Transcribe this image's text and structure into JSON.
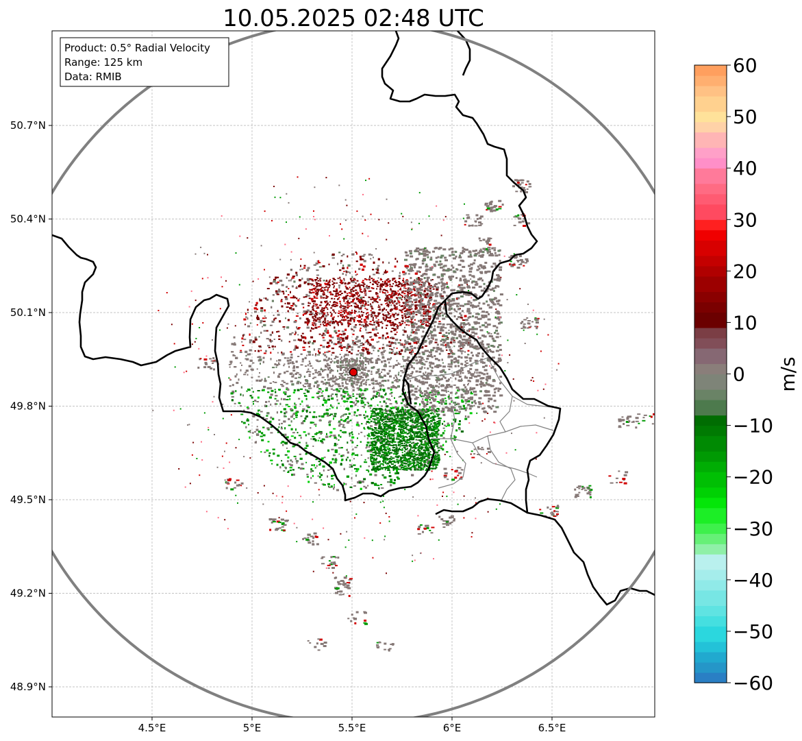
{
  "title": "10.05.2025 02:48 UTC",
  "info_box": {
    "product": "Product: 0.5° Radial Velocity",
    "range": "Range: 125 km",
    "data": "Data: RMIB"
  },
  "map": {
    "x_ticks": [
      {
        "value": 4.5,
        "label": "4.5°E"
      },
      {
        "value": 5.0,
        "label": "5°E"
      },
      {
        "value": 5.5,
        "label": "5.5°E"
      },
      {
        "value": 6.0,
        "label": "6°E"
      },
      {
        "value": 6.5,
        "label": "6.5°E"
      }
    ],
    "y_ticks": [
      {
        "value": 50.7,
        "label": "50.7°N"
      },
      {
        "value": 50.4,
        "label": "50.4°N"
      },
      {
        "value": 50.1,
        "label": "50.1°N"
      },
      {
        "value": 49.8,
        "label": "49.8°N"
      },
      {
        "value": 49.5,
        "label": "49.5°N"
      },
      {
        "value": 49.2,
        "label": "49.2°N"
      },
      {
        "value": 48.9,
        "label": "48.9°N"
      }
    ],
    "radar_site": {
      "lon": 5.505,
      "lat": 49.914
    },
    "range_ring_color": "#808080",
    "border_color": "#000000",
    "admin_border_color": "#808080",
    "gridlines": true
  },
  "colorbar": {
    "label": "m/s",
    "min": -60,
    "max": 60,
    "ticks": [
      {
        "value": 60,
        "label": "60"
      },
      {
        "value": 50,
        "label": "50"
      },
      {
        "value": 40,
        "label": "40"
      },
      {
        "value": 30,
        "label": "30"
      },
      {
        "value": 20,
        "label": "20"
      },
      {
        "value": 10,
        "label": "10"
      },
      {
        "value": 0,
        "label": "0"
      },
      {
        "value": -10,
        "label": "−10"
      },
      {
        "value": -20,
        "label": "−20"
      },
      {
        "value": -30,
        "label": "−30"
      },
      {
        "value": -40,
        "label": "−40"
      },
      {
        "value": -50,
        "label": "−50"
      },
      {
        "value": -60,
        "label": "−60"
      }
    ],
    "stops": [
      {
        "from": -60,
        "color": "#2a7fc4"
      },
      {
        "from": -58,
        "color": "#2596c8"
      },
      {
        "from": -56,
        "color": "#21a9cf"
      },
      {
        "from": -54,
        "color": "#23c2d8"
      },
      {
        "from": -52,
        "color": "#2bd7de"
      },
      {
        "from": -49,
        "color": "#45dfe0"
      },
      {
        "from": -47,
        "color": "#5fe3e2"
      },
      {
        "from": -45,
        "color": "#77e6e4"
      },
      {
        "from": -42,
        "color": "#90eae8"
      },
      {
        "from": -40,
        "color": "#a5edeb"
      },
      {
        "from": -38,
        "color": "#b9f0ee"
      },
      {
        "from": -35,
        "color": "#8ff0a8"
      },
      {
        "from": -33,
        "color": "#66f077"
      },
      {
        "from": -31,
        "color": "#3ef04c"
      },
      {
        "from": -29,
        "color": "#1cee26"
      },
      {
        "from": -26,
        "color": "#04e609"
      },
      {
        "from": -24,
        "color": "#00d104"
      },
      {
        "from": -22,
        "color": "#00bf04"
      },
      {
        "from": -19,
        "color": "#00ad04"
      },
      {
        "from": -17,
        "color": "#009a03"
      },
      {
        "from": -15,
        "color": "#008a03"
      },
      {
        "from": -12,
        "color": "#007a02"
      },
      {
        "from": -10,
        "color": "#006d02"
      },
      {
        "from": -8,
        "color": "#4d7a4d"
      },
      {
        "from": -5,
        "color": "#6a8366"
      },
      {
        "from": -3,
        "color": "#7e8478"
      },
      {
        "from": 0,
        "color": "#8a7e7a"
      },
      {
        "from": 2,
        "color": "#866873"
      },
      {
        "from": 5,
        "color": "#814e58"
      },
      {
        "from": 7,
        "color": "#7b3e45"
      },
      {
        "from": 9,
        "color": "#6b0000"
      },
      {
        "from": 12,
        "color": "#7a0000"
      },
      {
        "from": 14,
        "color": "#8a0000"
      },
      {
        "from": 16,
        "color": "#9c0000"
      },
      {
        "from": 19,
        "color": "#b00000"
      },
      {
        "from": 21,
        "color": "#c40000"
      },
      {
        "from": 23,
        "color": "#d80000"
      },
      {
        "from": 26,
        "color": "#f00000"
      },
      {
        "from": 28,
        "color": "#ff2020"
      },
      {
        "from": 30,
        "color": "#ff4a60"
      },
      {
        "from": 33,
        "color": "#ff5b72"
      },
      {
        "from": 35,
        "color": "#ff6b83"
      },
      {
        "from": 37,
        "color": "#ff7a9a"
      },
      {
        "from": 40,
        "color": "#ff8fc8"
      },
      {
        "from": 42,
        "color": "#ffa0c8"
      },
      {
        "from": 44,
        "color": "#ffb5b5"
      },
      {
        "from": 47,
        "color": "#ffd2a8"
      },
      {
        "from": 49,
        "color": "#ffe29a"
      },
      {
        "from": 51,
        "color": "#ffd18f"
      },
      {
        "from": 54,
        "color": "#ffc184"
      },
      {
        "from": 56,
        "color": "#ffaf70"
      },
      {
        "from": 58,
        "color": "#ff9f5e"
      }
    ]
  }
}
